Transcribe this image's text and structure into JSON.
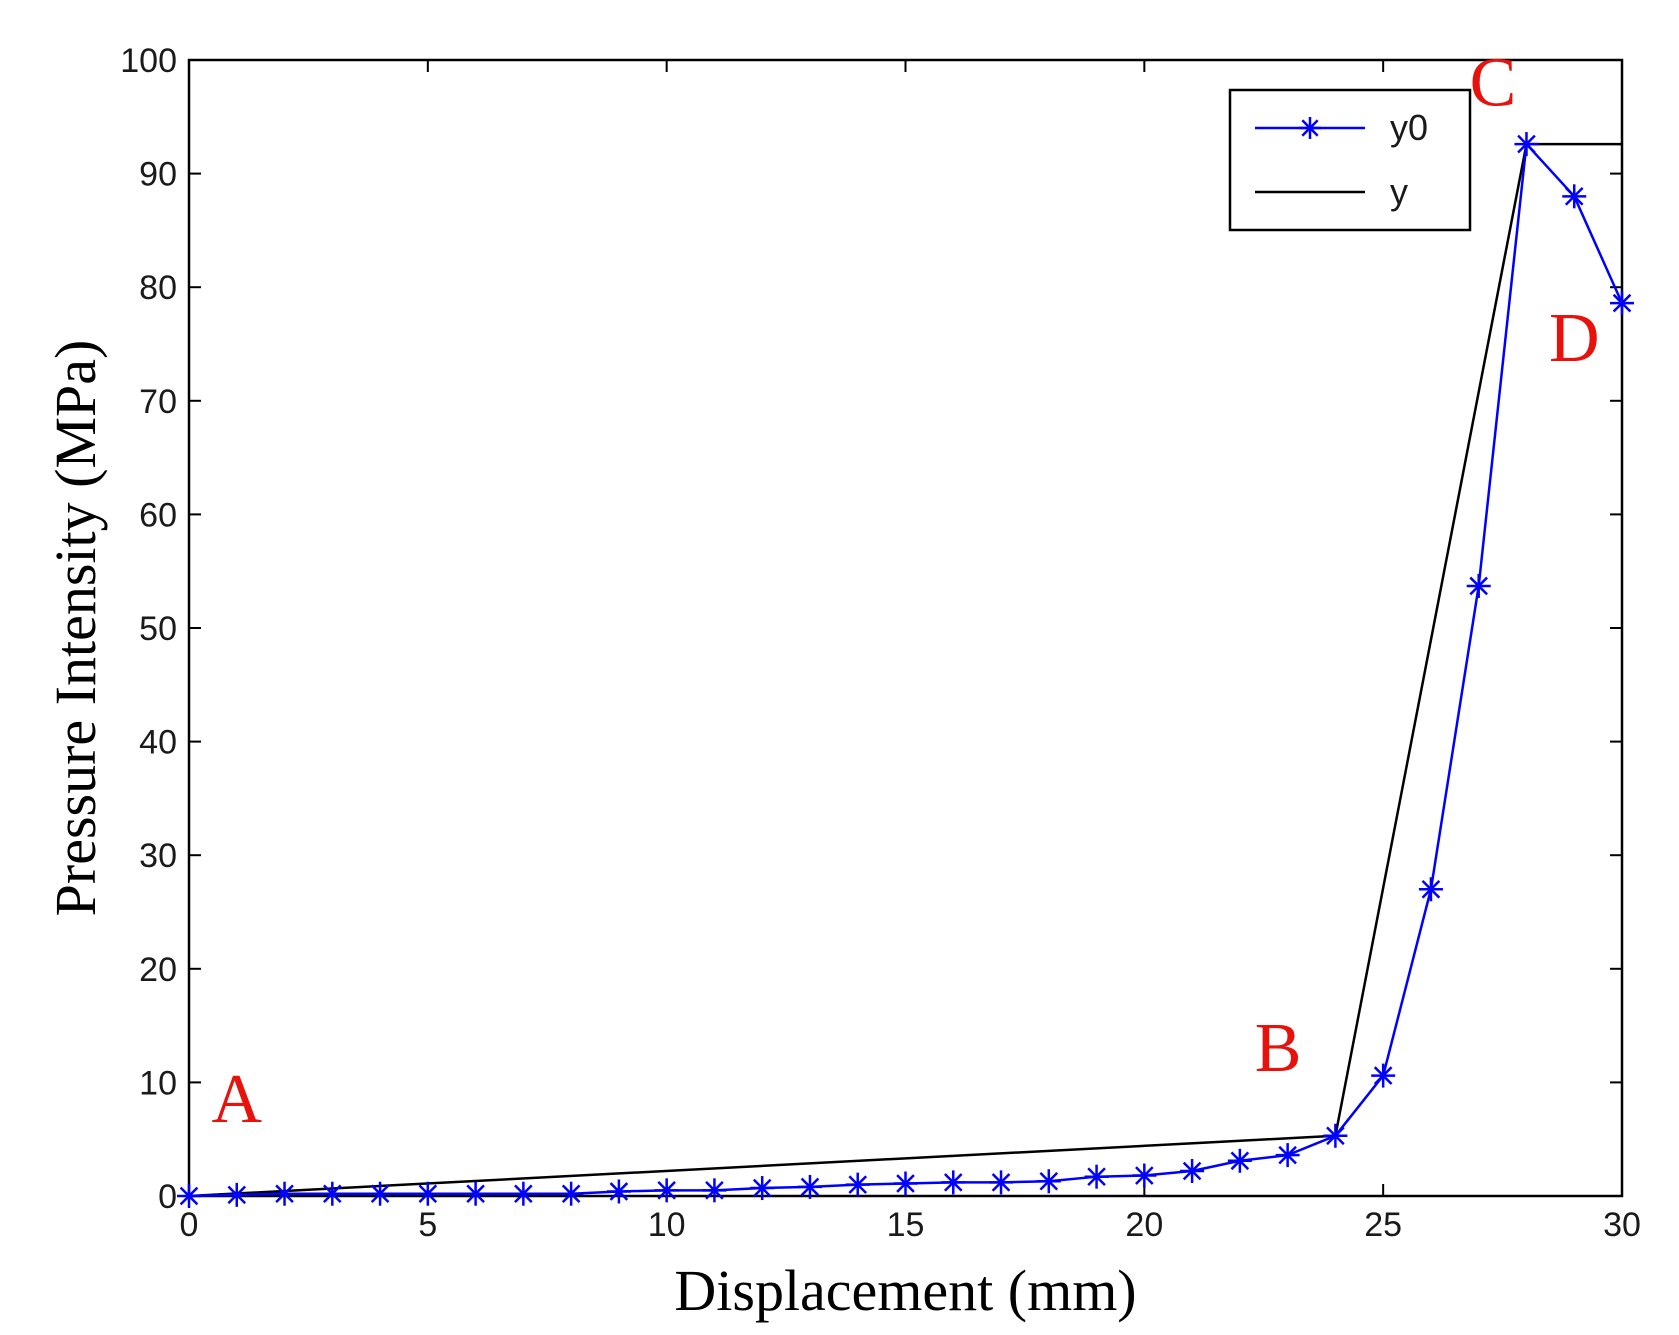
{
  "chart_data": {
    "type": "line",
    "title": "",
    "xlabel": "Displacement (mm)",
    "ylabel": "Pressure Intensity (MPa)",
    "xlim": [
      0,
      30
    ],
    "ylim": [
      0,
      100
    ],
    "xticks": [
      0,
      5,
      10,
      15,
      20,
      25,
      30
    ],
    "yticks": [
      0,
      10,
      20,
      30,
      40,
      50,
      60,
      70,
      80,
      90,
      100
    ],
    "grid": false,
    "legend_position": "top-right",
    "series": [
      {
        "name": "y0",
        "color": "#0000ff",
        "marker": "asterisk",
        "x": [
          0,
          1,
          2,
          3,
          4,
          5,
          6,
          7,
          8,
          9,
          10,
          11,
          12,
          13,
          14,
          15,
          16,
          17,
          18,
          19,
          20,
          21,
          22,
          23,
          24,
          25,
          26,
          27,
          28,
          29,
          30
        ],
        "y": [
          0,
          0.1,
          0.2,
          0.2,
          0.2,
          0.2,
          0.2,
          0.2,
          0.2,
          0.4,
          0.5,
          0.5,
          0.7,
          0.8,
          1.0,
          1.1,
          1.2,
          1.2,
          1.3,
          1.7,
          1.8,
          2.2,
          3.1,
          3.6,
          5.3,
          10.6,
          27.0,
          53.7,
          92.6,
          88.0,
          78.6
        ]
      },
      {
        "name": "y",
        "color": "#000000",
        "marker": "none",
        "x": [
          0,
          24,
          28,
          30
        ],
        "y": [
          0,
          5.3,
          92.6,
          92.6
        ]
      }
    ],
    "annotations": [
      {
        "text": "A",
        "x": 1.0,
        "y": 6.5
      },
      {
        "text": "B",
        "x": 22.8,
        "y": 11.0
      },
      {
        "text": "C",
        "x": 27.3,
        "y": 96.0
      },
      {
        "text": "D",
        "x": 29.0,
        "y": 73.5
      }
    ]
  }
}
